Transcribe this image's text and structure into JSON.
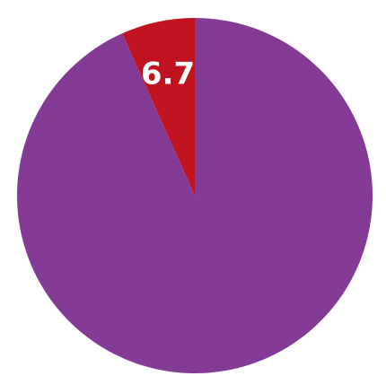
{
  "chart_data": {
    "type": "pie",
    "slices": [
      {
        "label": "6.7",
        "value": 6.7,
        "color": "#c1121f",
        "show_label": true
      },
      {
        "label": "",
        "value": 93.3,
        "color": "#833b96",
        "show_label": false
      }
    ],
    "title": "",
    "legend": "none",
    "start_angle": "top",
    "direction": "counterclockwise"
  }
}
